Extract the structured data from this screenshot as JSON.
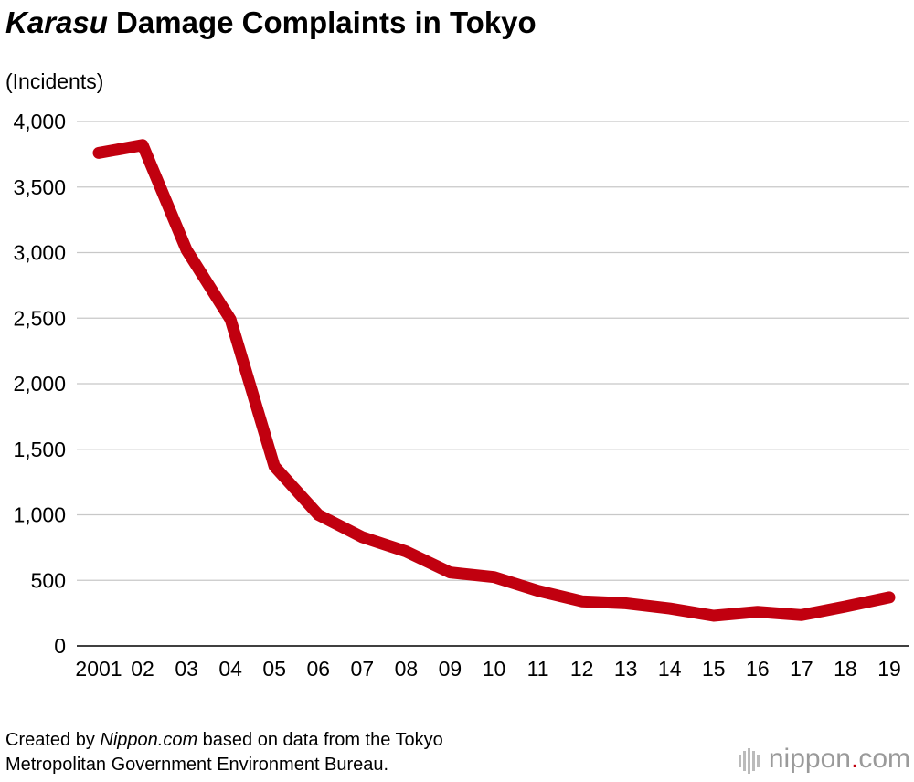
{
  "title": {
    "italic": "Karasu",
    "rest": " Damage Complaints in Tokyo"
  },
  "unit_label": "(Incidents)",
  "source": {
    "prefix": "Created by ",
    "italic": "Nippon.com",
    "suffix": " based on data from the Tokyo",
    "line2": "Metropolitan Government Environment Bureau."
  },
  "logo": {
    "text": "nippon",
    "dot": ".",
    "suffix": "com"
  },
  "colors": {
    "line": "#c1000f",
    "grid": "#c8c8c8",
    "logo_gray": "#9a9a9a"
  },
  "chart_data": {
    "type": "line",
    "title": "Karasu Damage Complaints in Tokyo",
    "ylabel": "(Incidents)",
    "xlabel": "",
    "categories": [
      "2001",
      "02",
      "03",
      "04",
      "05",
      "06",
      "07",
      "08",
      "09",
      "10",
      "11",
      "12",
      "13",
      "14",
      "15",
      "16",
      "17",
      "18",
      "19"
    ],
    "yticks": [
      0,
      500,
      1000,
      1500,
      2000,
      2500,
      3000,
      3500,
      4000
    ],
    "ytick_labels": [
      "0",
      "500",
      "1,000",
      "1,500",
      "2,000",
      "2,500",
      "3,000",
      "3,500",
      "4,000"
    ],
    "ylim": [
      0,
      4000
    ],
    "grid": true,
    "series": [
      {
        "values": [
          3760,
          3820,
          3020,
          2490,
          1370,
          1000,
          830,
          720,
          560,
          525,
          420,
          340,
          325,
          285,
          230,
          260,
          235,
          300,
          370
        ]
      }
    ]
  }
}
